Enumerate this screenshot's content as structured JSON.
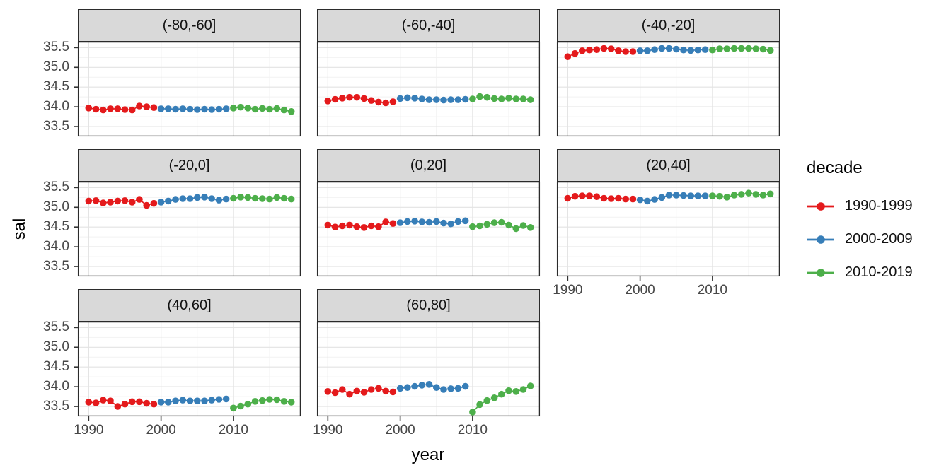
{
  "figure": {
    "x_axis_title": "year",
    "y_axis_title": "sal"
  },
  "axes": {
    "x_tick_labels": [
      "1990",
      "2000",
      "2010"
    ],
    "y_tick_labels": [
      "35.5",
      "35.0",
      "34.5",
      "34.0",
      "33.5"
    ]
  },
  "legend": {
    "title": "decade",
    "entries": [
      {
        "label": "1990-1999",
        "color": "#E41A1C"
      },
      {
        "label": "2000-2009",
        "color": "#377EB8"
      },
      {
        "label": "2010-2019",
        "color": "#4DAF4A"
      }
    ]
  },
  "theme": {
    "strip_background": "#d9d9d9",
    "strip_border": "#2b2b2b",
    "panel_border": "#2b2b2b",
    "grid_major": "#e3e3e3",
    "grid_minor": "#f2f2f2",
    "tick_color": "#333333",
    "tick_label_color": "#474747"
  },
  "chart_data": {
    "type": "scatter",
    "title": "",
    "xlabel": "year",
    "ylabel": "sal",
    "legend_title": "decade",
    "facet_variable": "latitude band",
    "grid": true,
    "legend_position": "right",
    "x_ticks": [
      1990,
      2000,
      2010
    ],
    "y_ticks": [
      35.5,
      35.0,
      34.5,
      34.0,
      33.5
    ],
    "x_minor_gridlines": [
      1995,
      2005,
      2015
    ],
    "y_minor_gridlines": [
      33.75,
      34.25,
      34.75,
      35.25
    ],
    "xlim": [
      1988.5,
      2019.3
    ],
    "ylim": [
      33.25,
      35.65
    ],
    "facets": [
      {
        "label": "(-80,-60]",
        "series": [
          {
            "name": "1990-1999",
            "color": "#E41A1C",
            "x_start": 1990,
            "values": [
              33.97,
              33.94,
              33.92,
              33.95,
              33.95,
              33.93,
              33.92,
              34.02,
              34.0,
              33.98
            ]
          },
          {
            "name": "2000-2009",
            "color": "#377EB8",
            "x_start": 2000,
            "values": [
              33.95,
              33.95,
              33.94,
              33.95,
              33.94,
              33.93,
              33.94,
              33.93,
              33.94,
              33.95
            ]
          },
          {
            "name": "2010-2019",
            "color": "#4DAF4A",
            "x_start": 2010,
            "values": [
              33.97,
              33.99,
              33.97,
              33.94,
              33.96,
              33.94,
              33.96,
              33.92,
              33.88
            ]
          }
        ]
      },
      {
        "label": "(-60,-40]",
        "series": [
          {
            "name": "1990-1999",
            "color": "#E41A1C",
            "x_start": 1990,
            "values": [
              34.15,
              34.19,
              34.22,
              34.24,
              34.24,
              34.21,
              34.16,
              34.12,
              34.1,
              34.13
            ]
          },
          {
            "name": "2000-2009",
            "color": "#377EB8",
            "x_start": 2000,
            "values": [
              34.21,
              34.23,
              34.22,
              34.2,
              34.18,
              34.18,
              34.17,
              34.18,
              34.18,
              34.19
            ]
          },
          {
            "name": "2010-2019",
            "color": "#4DAF4A",
            "x_start": 2010,
            "values": [
              34.2,
              34.26,
              34.24,
              34.21,
              34.2,
              34.22,
              34.2,
              34.2,
              34.18
            ]
          }
        ]
      },
      {
        "label": "(-40,-20]",
        "series": [
          {
            "name": "1990-1999",
            "color": "#E41A1C",
            "x_start": 1990,
            "values": [
              35.27,
              35.35,
              35.42,
              35.44,
              35.45,
              35.48,
              35.47,
              35.42,
              35.4,
              35.4
            ]
          },
          {
            "name": "2000-2009",
            "color": "#377EB8",
            "x_start": 2000,
            "values": [
              35.42,
              35.42,
              35.45,
              35.48,
              35.48,
              35.46,
              35.44,
              35.43,
              35.44,
              35.45
            ]
          },
          {
            "name": "2010-2019",
            "color": "#4DAF4A",
            "x_start": 2010,
            "values": [
              35.44,
              35.47,
              35.47,
              35.48,
              35.48,
              35.48,
              35.47,
              35.46,
              35.43
            ]
          }
        ]
      },
      {
        "label": "(-20,0]",
        "series": [
          {
            "name": "1990-1999",
            "color": "#E41A1C",
            "x_start": 1990,
            "values": [
              35.16,
              35.17,
              35.11,
              35.13,
              35.16,
              35.17,
              35.13,
              35.2,
              35.05,
              35.1
            ]
          },
          {
            "name": "2000-2009",
            "color": "#377EB8",
            "x_start": 2000,
            "values": [
              35.13,
              35.16,
              35.2,
              35.22,
              35.22,
              35.25,
              35.26,
              35.22,
              35.18,
              35.21
            ]
          },
          {
            "name": "2010-2019",
            "color": "#4DAF4A",
            "x_start": 2010,
            "values": [
              35.23,
              35.26,
              35.25,
              35.23,
              35.22,
              35.21,
              35.25,
              35.23,
              35.21
            ]
          }
        ]
      },
      {
        "label": "(0,20]",
        "series": [
          {
            "name": "1990-1999",
            "color": "#E41A1C",
            "x_start": 1990,
            "values": [
              34.55,
              34.5,
              34.53,
              34.55,
              34.51,
              34.49,
              34.53,
              34.51,
              34.63,
              34.59
            ]
          },
          {
            "name": "2000-2009",
            "color": "#377EB8",
            "x_start": 2000,
            "values": [
              34.61,
              34.64,
              34.65,
              34.63,
              34.62,
              34.64,
              34.6,
              34.58,
              34.64,
              34.66
            ]
          },
          {
            "name": "2010-2019",
            "color": "#4DAF4A",
            "x_start": 2010,
            "values": [
              34.51,
              34.53,
              34.57,
              34.61,
              34.62,
              34.55,
              34.46,
              34.54,
              34.49
            ]
          }
        ]
      },
      {
        "label": "(20,40]",
        "series": [
          {
            "name": "1990-1999",
            "color": "#E41A1C",
            "x_start": 1990,
            "values": [
              35.23,
              35.28,
              35.29,
              35.29,
              35.27,
              35.23,
              35.22,
              35.23,
              35.21,
              35.21
            ]
          },
          {
            "name": "2000-2009",
            "color": "#377EB8",
            "x_start": 2000,
            "values": [
              35.19,
              35.16,
              35.2,
              35.25,
              35.31,
              35.31,
              35.3,
              35.29,
              35.29,
              35.29
            ]
          },
          {
            "name": "2010-2019",
            "color": "#4DAF4A",
            "x_start": 2010,
            "values": [
              35.29,
              35.28,
              35.26,
              35.31,
              35.33,
              35.36,
              35.33,
              35.31,
              35.34
            ]
          }
        ]
      },
      {
        "label": "(40,60]",
        "series": [
          {
            "name": "1990-1999",
            "color": "#E41A1C",
            "x_start": 1990,
            "values": [
              33.61,
              33.59,
              33.66,
              33.64,
              33.5,
              33.56,
              33.62,
              33.62,
              33.58,
              33.56
            ]
          },
          {
            "name": "2000-2009",
            "color": "#377EB8",
            "x_start": 2000,
            "values": [
              33.61,
              33.61,
              33.64,
              33.66,
              33.64,
              33.64,
              33.64,
              33.66,
              33.68,
              33.69
            ]
          },
          {
            "name": "2010-2019",
            "color": "#4DAF4A",
            "x_start": 2010,
            "values": [
              33.46,
              33.51,
              33.56,
              33.63,
              33.65,
              33.68,
              33.67,
              33.63,
              33.61
            ]
          }
        ]
      },
      {
        "label": "(60,80]",
        "series": [
          {
            "name": "1990-1999",
            "color": "#E41A1C",
            "x_start": 1990,
            "values": [
              33.88,
              33.85,
              33.93,
              33.81,
              33.89,
              33.86,
              33.93,
              33.96,
              33.89,
              33.87
            ]
          },
          {
            "name": "2000-2009",
            "color": "#377EB8",
            "x_start": 2000,
            "values": [
              33.96,
              33.98,
              34.01,
              34.04,
              34.06,
              33.98,
              33.93,
              33.95,
              33.96,
              34.01
            ]
          },
          {
            "name": "2010-2019",
            "color": "#4DAF4A",
            "x_start": 2010,
            "values": [
              33.36,
              33.55,
              33.65,
              33.72,
              33.81,
              33.9,
              33.88,
              33.93,
              34.02
            ]
          }
        ]
      }
    ]
  }
}
